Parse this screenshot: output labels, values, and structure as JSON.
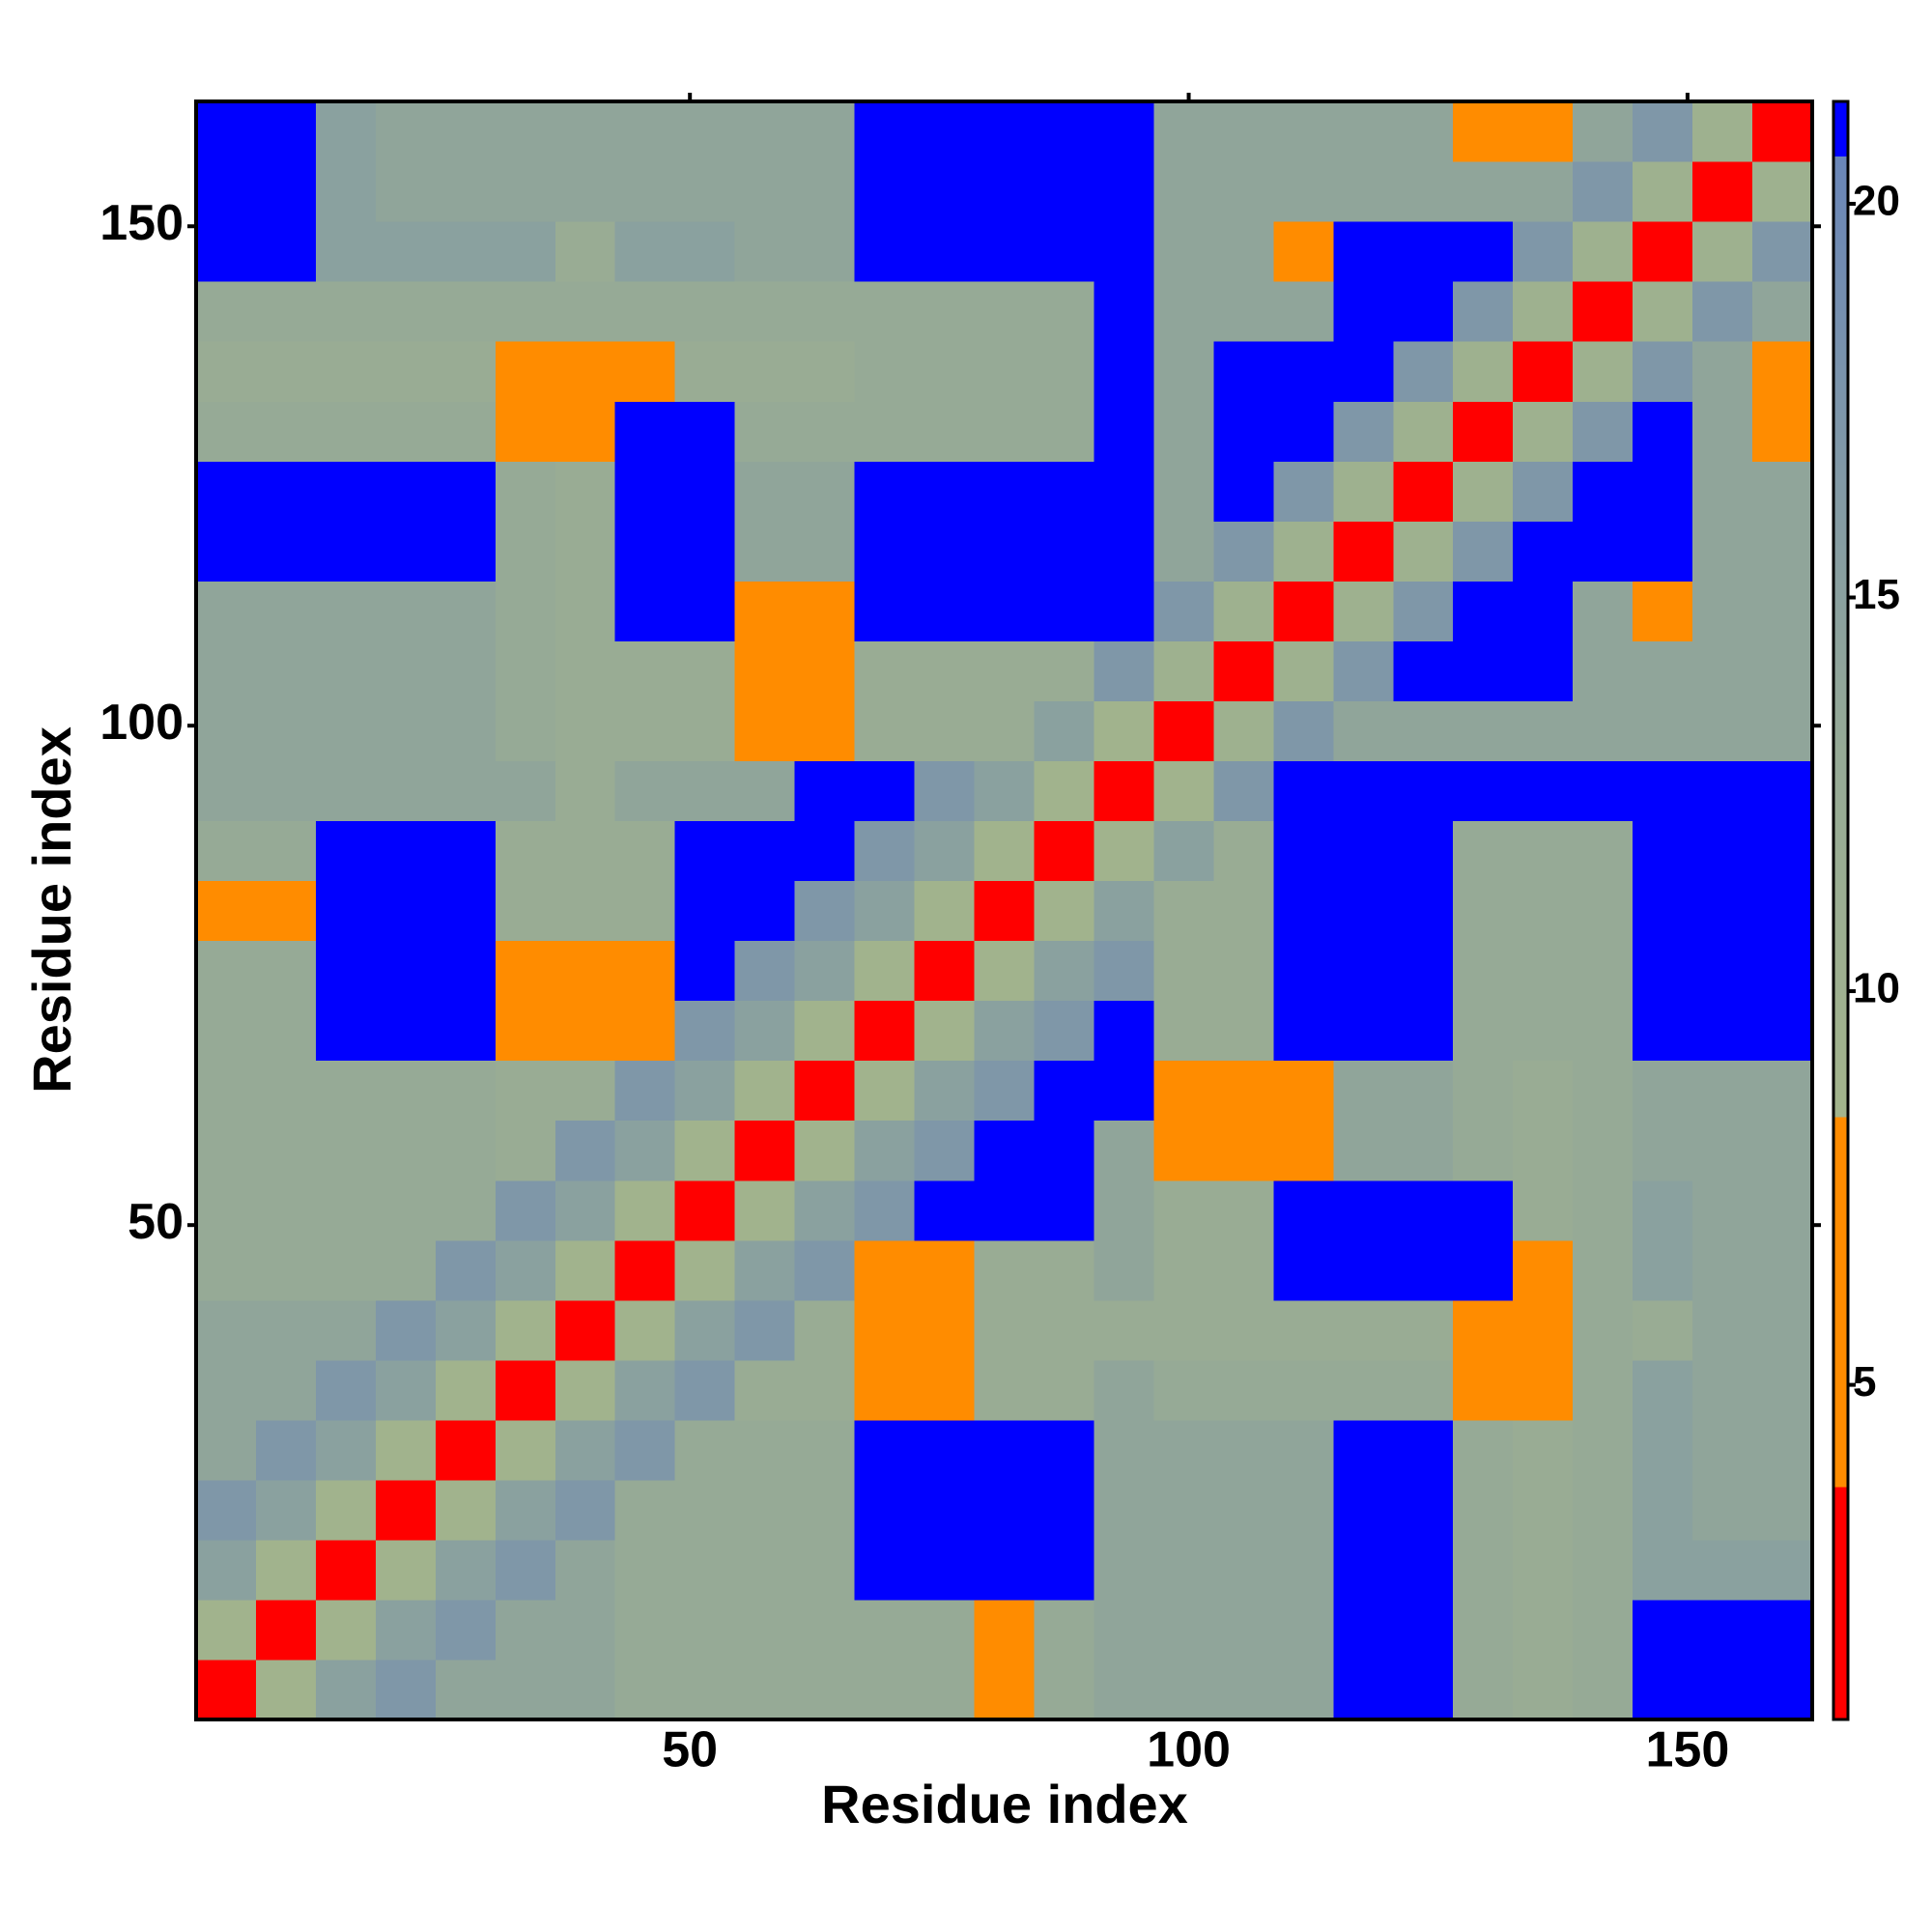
{
  "chart_data": {
    "type": "heatmap",
    "xlabel": "Residue index",
    "ylabel": "Residue index",
    "xlim": [
      0.5,
      162.5
    ],
    "ylim": [
      0.5,
      162.5
    ],
    "xticks": [
      50,
      100,
      150
    ],
    "yticks": [
      50,
      100,
      150
    ],
    "xbins": [
      0.5,
      6.5,
      12.5,
      18.5,
      24.5,
      30.5,
      36.5,
      42.5,
      48.5,
      54.5,
      60.5,
      66.5,
      72.5,
      78.5,
      84.5,
      90.5,
      96.5,
      102.5,
      108.5,
      114.5,
      120.5,
      126.5,
      132.5,
      138.5,
      144.5,
      150.5,
      156.5,
      162.5
    ],
    "ybins": [
      0.5,
      6.5,
      12.5,
      18.5,
      24.5,
      30.5,
      36.5,
      42.5,
      48.5,
      54.5,
      60.5,
      66.5,
      72.5,
      78.5,
      84.5,
      90.5,
      96.5,
      102.5,
      108.5,
      114.5,
      120.5,
      126.5,
      132.5,
      138.5,
      144.5,
      150.5,
      156.5,
      162.5
    ],
    "z": [
      [
        3,
        9,
        15,
        17,
        14,
        14,
        14,
        13,
        13,
        13,
        13,
        13,
        13,
        8,
        13,
        14,
        14,
        14,
        14,
        21,
        21,
        13,
        12,
        13,
        21,
        21,
        21
      ],
      [
        9,
        3,
        9,
        15,
        17,
        14,
        14,
        13,
        13,
        13,
        13,
        13,
        13,
        8,
        13,
        14,
        14,
        14,
        14,
        21,
        21,
        13,
        12,
        13,
        21,
        21,
        21
      ],
      [
        15,
        9,
        3,
        9,
        15,
        17,
        14,
        13,
        13,
        13,
        13,
        21,
        21,
        21,
        21,
        14,
        14,
        14,
        14,
        21,
        21,
        13,
        12,
        13,
        15,
        15,
        15
      ],
      [
        17,
        15,
        9,
        3,
        9,
        15,
        17,
        13,
        13,
        13,
        13,
        21,
        21,
        21,
        21,
        14,
        14,
        14,
        14,
        21,
        21,
        13,
        12,
        13,
        15,
        14,
        14
      ],
      [
        14,
        17,
        15,
        9,
        3,
        9,
        15,
        17,
        13,
        13,
        13,
        21,
        21,
        21,
        21,
        14,
        14,
        14,
        14,
        21,
        21,
        13,
        12,
        13,
        15,
        14,
        14
      ],
      [
        14,
        14,
        17,
        15,
        9,
        3,
        9,
        15,
        17,
        12,
        12,
        7,
        7,
        12,
        12,
        14,
        13,
        13,
        13,
        13,
        13,
        7,
        7,
        13,
        15,
        14,
        14
      ],
      [
        14,
        14,
        14,
        17,
        15,
        9,
        3,
        9,
        15,
        17,
        12,
        7,
        7,
        12,
        12,
        12,
        12,
        12,
        12,
        12,
        12,
        7,
        7,
        13,
        12,
        14,
        14
      ],
      [
        13,
        13,
        13,
        13,
        17,
        15,
        9,
        3,
        9,
        15,
        17,
        7,
        7,
        12,
        12,
        14,
        12,
        12,
        21,
        21,
        21,
        21,
        7,
        13,
        15,
        14,
        14
      ],
      [
        13,
        13,
        13,
        13,
        13,
        17,
        15,
        9,
        3,
        9,
        15,
        17,
        21,
        21,
        21,
        14,
        12,
        12,
        21,
        21,
        21,
        21,
        12,
        13,
        15,
        14,
        14
      ],
      [
        13,
        13,
        13,
        13,
        13,
        12,
        17,
        15,
        9,
        3,
        9,
        15,
        17,
        21,
        21,
        14,
        7,
        7,
        7,
        14,
        14,
        13,
        12,
        13,
        14,
        14,
        14
      ],
      [
        13,
        13,
        13,
        13,
        13,
        12,
        12,
        17,
        15,
        9,
        3,
        9,
        15,
        17,
        21,
        21,
        7,
        7,
        7,
        14,
        14,
        13,
        12,
        13,
        14,
        14,
        14
      ],
      [
        13,
        13,
        21,
        21,
        21,
        7,
        7,
        7,
        17,
        15,
        9,
        3,
        9,
        15,
        17,
        21,
        12,
        12,
        21,
        21,
        21,
        13,
        13,
        13,
        21,
        21,
        21
      ],
      [
        13,
        13,
        21,
        21,
        21,
        7,
        7,
        7,
        21,
        17,
        15,
        9,
        3,
        9,
        15,
        17,
        12,
        12,
        21,
        21,
        21,
        13,
        13,
        13,
        21,
        21,
        21
      ],
      [
        8,
        8,
        21,
        21,
        21,
        12,
        12,
        12,
        21,
        21,
        17,
        15,
        9,
        3,
        9,
        15,
        12,
        12,
        21,
        21,
        21,
        13,
        13,
        13,
        21,
        21,
        21
      ],
      [
        13,
        13,
        21,
        21,
        21,
        12,
        12,
        12,
        21,
        21,
        21,
        17,
        15,
        9,
        3,
        9,
        15,
        12,
        21,
        21,
        21,
        13,
        13,
        13,
        21,
        21,
        21
      ],
      [
        14,
        14,
        14,
        14,
        14,
        14,
        12,
        14,
        14,
        14,
        21,
        21,
        17,
        15,
        9,
        3,
        9,
        17,
        21,
        21,
        21,
        21,
        21,
        21,
        21,
        21,
        21
      ],
      [
        14,
        14,
        14,
        14,
        14,
        13,
        12,
        12,
        12,
        7,
        7,
        12,
        12,
        12,
        15,
        9,
        3,
        10,
        17,
        14,
        14,
        14,
        14,
        14,
        14,
        14,
        14
      ],
      [
        14,
        14,
        14,
        14,
        14,
        13,
        12,
        12,
        12,
        7,
        7,
        12,
        12,
        12,
        12,
        17,
        10,
        3,
        10,
        17,
        21,
        21,
        21,
        14,
        14,
        14,
        14
      ],
      [
        14,
        14,
        14,
        14,
        14,
        13,
        12,
        21,
        21,
        7,
        7,
        21,
        21,
        21,
        21,
        21,
        17,
        10,
        3,
        10,
        17,
        21,
        21,
        14,
        8,
        14,
        14
      ],
      [
        21,
        21,
        21,
        21,
        21,
        13,
        12,
        21,
        21,
        14,
        14,
        21,
        21,
        21,
        21,
        21,
        14,
        17,
        10,
        3,
        10,
        17,
        21,
        21,
        21,
        14,
        14
      ],
      [
        21,
        21,
        21,
        21,
        21,
        13,
        12,
        21,
        21,
        14,
        14,
        21,
        21,
        21,
        21,
        21,
        14,
        21,
        17,
        10,
        3,
        10,
        17,
        21,
        21,
        14,
        14
      ],
      [
        13,
        13,
        13,
        13,
        13,
        7,
        7,
        21,
        21,
        13,
        13,
        13,
        13,
        13,
        13,
        21,
        14,
        21,
        21,
        17,
        10,
        3,
        10,
        17,
        21,
        14,
        7
      ],
      [
        12,
        12,
        12,
        12,
        12,
        7,
        7,
        7,
        12,
        12,
        12,
        13,
        13,
        13,
        13,
        21,
        14,
        21,
        21,
        21,
        17,
        10,
        3,
        10,
        17,
        14,
        7
      ],
      [
        13,
        13,
        13,
        13,
        13,
        13,
        13,
        13,
        13,
        13,
        13,
        13,
        13,
        13,
        13,
        21,
        14,
        14,
        14,
        21,
        21,
        17,
        10,
        3,
        10,
        17,
        14
      ],
      [
        21,
        21,
        15,
        15,
        15,
        15,
        12,
        15,
        15,
        14,
        14,
        21,
        21,
        21,
        21,
        21,
        14,
        14,
        8,
        21,
        21,
        21,
        17,
        10,
        3,
        10,
        17
      ],
      [
        21,
        21,
        15,
        14,
        14,
        14,
        14,
        14,
        14,
        14,
        14,
        21,
        21,
        21,
        21,
        21,
        14,
        14,
        14,
        14,
        14,
        14,
        14,
        17,
        10,
        3,
        10
      ],
      [
        21,
        21,
        15,
        14,
        14,
        14,
        14,
        14,
        14,
        14,
        14,
        21,
        21,
        21,
        21,
        21,
        14,
        14,
        14,
        14,
        14,
        7,
        7,
        14,
        17,
        10,
        3
      ]
    ],
    "zlim": [
      0.75,
      21.3
    ],
    "zticks": [
      5,
      10,
      15,
      20
    ],
    "colorscale": [
      [
        0.75,
        "#ff0000"
      ],
      [
        3.7,
        "#ff0000"
      ],
      [
        3.7,
        "#ff8c00"
      ],
      [
        8.4,
        "#ff8c00"
      ],
      [
        8.4,
        "#a3b48c"
      ],
      [
        13,
        "#96aa96"
      ],
      [
        20.6,
        "#6a86b8"
      ],
      [
        20.6,
        "#0000ff"
      ],
      [
        21.3,
        "#0000ff"
      ]
    ]
  }
}
